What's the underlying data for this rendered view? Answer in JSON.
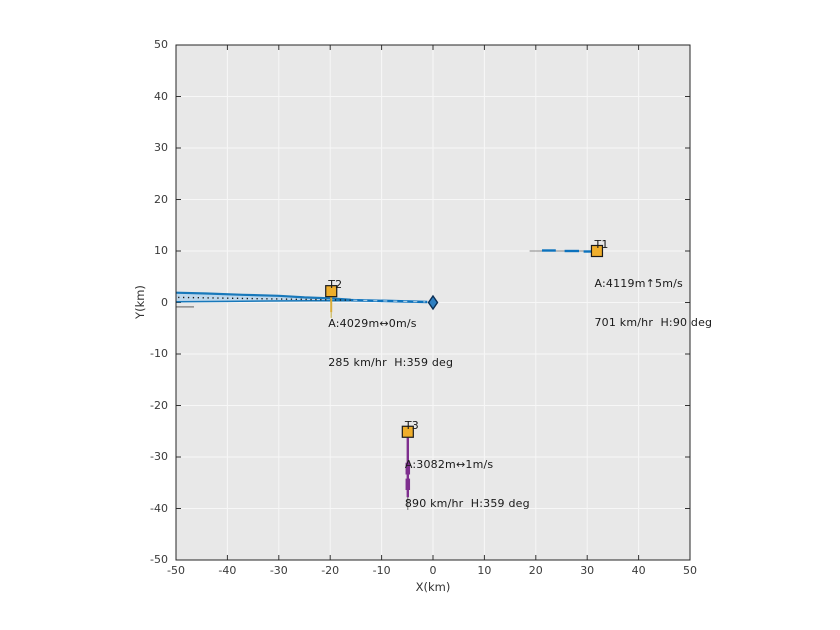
{
  "figure": {
    "background": "#ffffff",
    "axes_background": "#e8e8e8",
    "grid_color": "#f7f7f7",
    "axis_border_color": "#262626",
    "tick_color": "#333333",
    "track_blue": "#0c72bd",
    "track_purple": "#7E2F8E",
    "marker_orange": "#EFAE2B"
  },
  "chart_data": {
    "type": "scatter",
    "title": "",
    "xlabel": "X(km)",
    "ylabel": "Y(km)",
    "xlim": [
      -50,
      50
    ],
    "ylim": [
      -50,
      50
    ],
    "xticks": [
      -50,
      -40,
      -30,
      -20,
      -10,
      0,
      10,
      20,
      30,
      40,
      50
    ],
    "yticks": [
      -50,
      -40,
      -30,
      -20,
      -10,
      0,
      10,
      20,
      30,
      40,
      50
    ],
    "grid": true,
    "legend": null,
    "targets": [
      {
        "id": "T1",
        "annotation": [
          "T1",
          "A:4119m↑5m/s",
          "701 km/hr  H:90 deg"
        ],
        "position_km": {
          "x": 32,
          "y": 10
        },
        "altitude_m": 4119,
        "climb_rate_ms": 5,
        "speed_kmhr": 701,
        "heading_deg": 90,
        "track_history_km": [
          [
            21,
            10
          ],
          [
            32,
            10
          ]
        ],
        "track_color": "#0c72bd"
      },
      {
        "id": "T2",
        "annotation": [
          "T2",
          "A:4029m↔0m/s",
          "285 km/hr  H:359 deg"
        ],
        "position_km": {
          "x": -19.8,
          "y": 2.2
        },
        "altitude_m": 4029,
        "climb_rate_ms": 0,
        "speed_kmhr": 285,
        "heading_deg": 359,
        "track_history_km": [
          [
            -19.8,
            -3.0
          ],
          [
            -19.8,
            2.2
          ]
        ],
        "track_color": "#d9ac39"
      },
      {
        "id": "T3",
        "annotation": [
          "T3",
          "A:3082m↔1m/s",
          "890 km/hr  H:359 deg"
        ],
        "position_km": {
          "x": -4.9,
          "y": -25.1
        },
        "altitude_m": 3082,
        "climb_rate_ms": 1,
        "speed_kmhr": 890,
        "heading_deg": 359,
        "track_history_km": [
          [
            -4.9,
            -40.3
          ],
          [
            -4.9,
            -25.1
          ]
        ],
        "track_color": "#7E2F8E"
      }
    ],
    "origin_marker": {
      "x": 0,
      "y": 0,
      "shape": "diamond",
      "color": "#2e7fc1"
    },
    "primitives": [
      {
        "name": "approach-band-fill",
        "type": "polygon",
        "fill": "#bdd7ec",
        "points_km": [
          [
            -50,
            1.9
          ],
          [
            -44,
            1.75
          ],
          [
            -37,
            1.5
          ],
          [
            -30,
            1.3
          ],
          [
            -25,
            1.0
          ],
          [
            -20,
            0.8
          ],
          [
            -16,
            0.55
          ],
          [
            -16,
            0.35
          ],
          [
            -24,
            0.35
          ],
          [
            -32,
            0.3
          ],
          [
            -40,
            0.22
          ],
          [
            -50,
            0.15
          ]
        ]
      },
      {
        "name": "approach-band-top-edge",
        "type": "polyline",
        "stroke": "#1878ba",
        "width": 2.2,
        "points_km": [
          [
            -50,
            1.9
          ],
          [
            -44,
            1.75
          ],
          [
            -37,
            1.5
          ],
          [
            -30,
            1.3
          ],
          [
            -25,
            1.0
          ],
          [
            -20,
            0.8
          ],
          [
            -16,
            0.55
          ]
        ]
      },
      {
        "name": "approach-band-bottom-edge",
        "type": "polyline",
        "stroke": "#1878ba",
        "width": 1.5,
        "points_km": [
          [
            -50,
            0.15
          ],
          [
            -40,
            0.22
          ],
          [
            -32,
            0.3
          ],
          [
            -24,
            0.35
          ],
          [
            -16,
            0.35
          ]
        ]
      },
      {
        "name": "approach-dotted-center",
        "type": "polyline",
        "stroke": "#1c1c1c",
        "width": 1.4,
        "dash": "1.3 3.6",
        "points_km": [
          [
            -49.6,
            1.0
          ],
          [
            -15.5,
            0.45
          ]
        ]
      },
      {
        "name": "approach-tail",
        "type": "polyline",
        "stroke": "#0c72bd",
        "width": 2.6,
        "points_km": [
          [
            -16,
            0.45
          ],
          [
            -8,
            0.28
          ],
          [
            -1.1,
            0.1
          ]
        ]
      },
      {
        "name": "approach-tail-dashes",
        "type": "polyline",
        "stroke": "#a9cbe3",
        "width": 1.2,
        "dash": "4 6",
        "points_km": [
          [
            -15.5,
            0.44
          ],
          [
            -1.5,
            0.12
          ]
        ]
      },
      {
        "name": "left-edge-stub",
        "type": "polyline",
        "stroke": "#8a8a8a",
        "width": 1.5,
        "points_km": [
          [
            -50,
            -0.85
          ],
          [
            -46.5,
            -0.85
          ]
        ]
      },
      {
        "name": "t1-base-line",
        "type": "polyline",
        "stroke": "#8c8c8c",
        "width": 1,
        "points_km": [
          [
            18.8,
            10
          ],
          [
            31.6,
            10
          ]
        ]
      },
      {
        "name": "t1-track-seg-1",
        "type": "polyline",
        "stroke": "#0c72bd",
        "width": 2.4,
        "points_km": [
          [
            21.2,
            10.1
          ],
          [
            23.9,
            10.1
          ]
        ]
      },
      {
        "name": "t1-track-seg-2",
        "type": "polyline",
        "stroke": "#0c72bd",
        "width": 2.4,
        "points_km": [
          [
            25.6,
            10.0
          ],
          [
            28.4,
            10.0
          ]
        ]
      },
      {
        "name": "t1-track-seg-3",
        "type": "polyline",
        "stroke": "#0c72bd",
        "width": 2.4,
        "points_km": [
          [
            29.3,
            9.9
          ],
          [
            31.7,
            9.9
          ]
        ]
      },
      {
        "name": "t2-drop-line",
        "type": "polyline",
        "stroke": "#d9ac39",
        "width": 2,
        "points_km": [
          [
            -19.8,
            1.4
          ],
          [
            -19.8,
            -1.9
          ]
        ]
      },
      {
        "name": "t2-drop-tail",
        "type": "polyline",
        "stroke": "#cdbd6e",
        "width": 1.4,
        "points_km": [
          [
            -19.8,
            -1.9
          ],
          [
            -19.8,
            -3.0
          ]
        ]
      },
      {
        "name": "t3-base-line",
        "type": "polyline",
        "stroke": "#6e6e6e",
        "width": 1,
        "points_km": [
          [
            -4.9,
            -26.2
          ],
          [
            -4.9,
            -40.3
          ]
        ]
      },
      {
        "name": "t3-track-line",
        "type": "polyline",
        "stroke": "#7E2F8E",
        "width": 2.4,
        "points_km": [
          [
            -4.9,
            -26.3
          ],
          [
            -4.9,
            -37.8
          ]
        ]
      },
      {
        "name": "t3-track-blob-1",
        "type": "polyline",
        "stroke": "#7E2F8E",
        "width": 4.5,
        "points_km": [
          [
            -4.9,
            -31.1
          ],
          [
            -4.9,
            -33.4
          ]
        ]
      },
      {
        "name": "t3-track-blob-2",
        "type": "polyline",
        "stroke": "#7E2F8E",
        "width": 4.5,
        "points_km": [
          [
            -4.9,
            -34.2
          ],
          [
            -4.9,
            -36.4
          ]
        ]
      },
      {
        "name": "t1-marker",
        "type": "square",
        "fill": "#EFAE2B",
        "stroke": "#1a1a1a",
        "size": 11,
        "at_km": [
          31.9,
          10
        ]
      },
      {
        "name": "t2-marker",
        "type": "square",
        "fill": "#EFAE2B",
        "stroke": "#1a1a1a",
        "size": 11,
        "at_km": [
          -19.8,
          2.2
        ]
      },
      {
        "name": "t3-marker",
        "type": "square",
        "fill": "#EFAE2B",
        "stroke": "#1a1a1a",
        "size": 11,
        "at_km": [
          -4.9,
          -25.1
        ]
      },
      {
        "name": "origin-marker",
        "type": "diamond",
        "fill": "#2e7fc1",
        "stroke": "#0b2f55",
        "w": 9,
        "h": 13,
        "at_km": [
          0,
          0
        ]
      }
    ]
  }
}
